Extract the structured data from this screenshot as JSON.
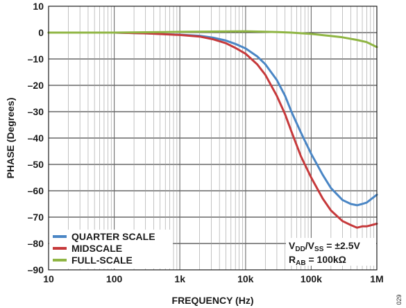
{
  "figure_id": "029",
  "chart_data": {
    "type": "line",
    "xlabel": "FREQUENCY (Hz)",
    "ylabel": "PHASE (Degrees)",
    "x_scale": "log",
    "xlim": [
      10,
      1000000
    ],
    "ylim": [
      -90,
      10
    ],
    "grid": true,
    "x_ticks": [
      10,
      100,
      1000,
      10000,
      100000,
      1000000
    ],
    "x_tick_labels": [
      "10",
      "100",
      "1k",
      "10k",
      "100k",
      "1M"
    ],
    "y_ticks": [
      10,
      0,
      -10,
      -20,
      -30,
      -40,
      -50,
      -60,
      -70,
      -80,
      -90
    ],
    "y_tick_labels": [
      "10",
      "0",
      "–10",
      "–20",
      "–30",
      "–40",
      "–50",
      "–60",
      "–70",
      "–80",
      "–90"
    ],
    "legend_position": "bottom-left",
    "series": [
      {
        "name": "QUARTER SCALE",
        "color": "#4a86c5",
        "x": [
          10,
          100,
          316,
          1000,
          2000,
          3162,
          5000,
          7000,
          10000,
          15000,
          20000,
          30000,
          40000,
          50000,
          70000,
          100000,
          150000,
          200000,
          300000,
          400000,
          500000,
          600000,
          700000,
          1000000
        ],
        "y": [
          0,
          0,
          -0.3,
          -0.8,
          -1.2,
          -1.9,
          -3.0,
          -4.3,
          -6.0,
          -9.0,
          -12.0,
          -18.0,
          -24.0,
          -30.0,
          -38.0,
          -46.0,
          -54.0,
          -59.0,
          -63.5,
          -65.0,
          -65.5,
          -65.0,
          -64.5,
          -61.5
        ]
      },
      {
        "name": "MIDSCALE",
        "color": "#c6393b",
        "x": [
          10,
          100,
          316,
          1000,
          2000,
          3162,
          5000,
          7000,
          10000,
          15000,
          20000,
          30000,
          40000,
          50000,
          70000,
          100000,
          150000,
          200000,
          300000,
          400000,
          500000,
          600000,
          700000,
          1000000
        ],
        "y": [
          0,
          0,
          -0.3,
          -0.9,
          -1.5,
          -2.5,
          -4.0,
          -5.8,
          -8.0,
          -12.0,
          -16.0,
          -24.0,
          -31.0,
          -37.5,
          -47.0,
          -55.0,
          -63.0,
          -67.5,
          -71.5,
          -73.0,
          -74.0,
          -73.5,
          -73.5,
          -72.5
        ]
      },
      {
        "name": "FULL-SCALE",
        "color": "#8fb543",
        "x": [
          10,
          100,
          1000,
          3162,
          10000,
          31623,
          50000,
          100000,
          200000,
          300000,
          500000,
          700000,
          1000000
        ],
        "y": [
          0,
          0,
          0.3,
          0.4,
          0.5,
          0.2,
          0,
          -0.5,
          -1.3,
          -1.8,
          -2.8,
          -3.6,
          -5.5
        ]
      }
    ],
    "annotations": [
      {
        "id": "supply",
        "parts": [
          {
            "text": "V",
            "sub": false
          },
          {
            "text": "DD",
            "sub": true
          },
          {
            "text": "/V",
            "sub": false
          },
          {
            "text": "SS",
            "sub": true
          },
          {
            "text": " = ±2.5V",
            "sub": false
          }
        ]
      },
      {
        "id": "resistance",
        "parts": [
          {
            "text": "R",
            "sub": false
          },
          {
            "text": "AB",
            "sub": true
          },
          {
            "text": " = 100kΩ",
            "sub": false
          }
        ]
      }
    ]
  }
}
